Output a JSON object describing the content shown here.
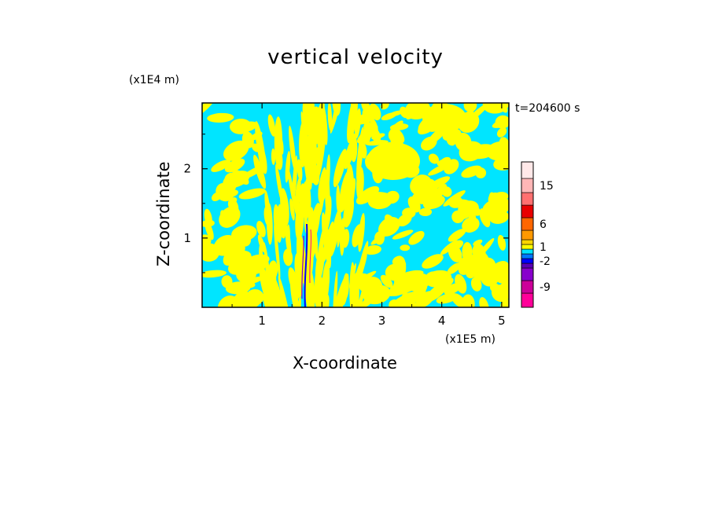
{
  "chart_data": {
    "type": "heatmap",
    "title": "vertical velocity",
    "xlabel": "X-coordinate",
    "ylabel": "Z-coordinate",
    "x_unit_label": "(x1E5 m)",
    "y_unit_label": "(x1E4 m)",
    "time_label": "t=204600 s",
    "xlim": [
      0,
      5.12
    ],
    "ylim": [
      0,
      2.95
    ],
    "x_ticks": [
      "1",
      "2",
      "3",
      "4",
      "5"
    ],
    "y_ticks": [
      "1",
      "2"
    ],
    "x_tick_values": [
      1,
      2,
      3,
      4,
      5
    ],
    "y_tick_values": [
      1,
      2
    ],
    "dominant_colors": {
      "positive": "#ffff00",
      "negative": "#00e5ff"
    },
    "colorbar": {
      "tick_labels": [
        "15",
        "6",
        "1",
        "-2",
        "-9"
      ],
      "levels": [
        {
          "color": "#ff0099"
        },
        {
          "color": "#cc0099"
        },
        {
          "color": "#8800cc"
        },
        {
          "color": "#5a00b4"
        },
        {
          "color": "#0000ff"
        },
        {
          "color": "#0078ff"
        },
        {
          "color": "#00e5ff"
        },
        {
          "color": "#ffff00"
        },
        {
          "color": "#ffd400"
        },
        {
          "color": "#ff9900"
        },
        {
          "color": "#ff6600"
        },
        {
          "color": "#e80000"
        },
        {
          "color": "#ff7070"
        },
        {
          "color": "#ffb6b6"
        },
        {
          "color": "#ffe8e8"
        }
      ]
    }
  }
}
